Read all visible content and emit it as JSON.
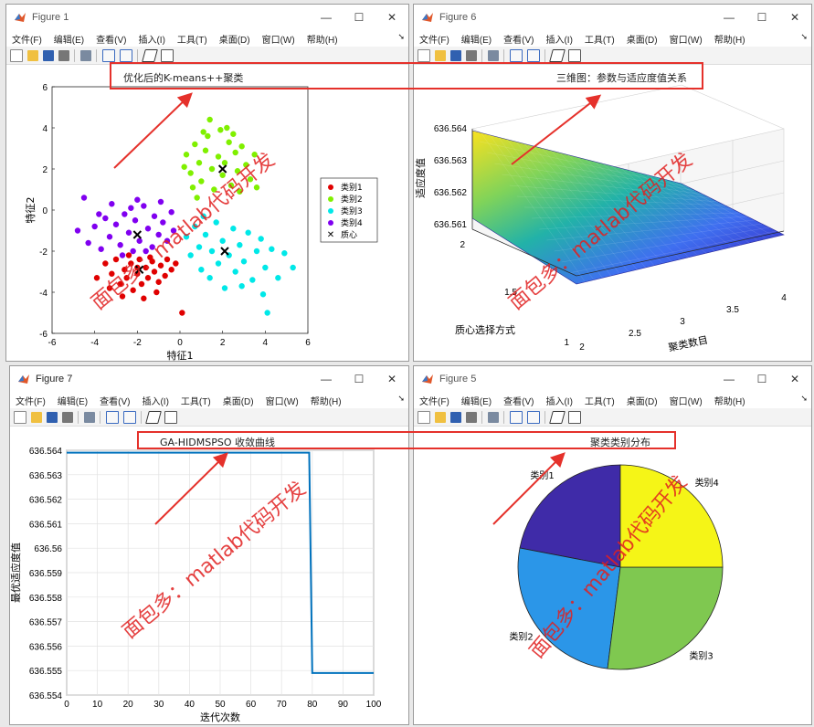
{
  "colors": {
    "cluster1": "#e00000",
    "cluster2": "#80f000",
    "cluster3": "#00e8e8",
    "cluster4": "#8000f0",
    "line": "#0072bd",
    "annotation": "#e5312b",
    "watermark": "#e02020"
  },
  "menu": [
    "文件(F)",
    "编辑(E)",
    "查看(V)",
    "插入(I)",
    "工具(T)",
    "桌面(D)",
    "窗口(W)",
    "帮助(H)"
  ],
  "window_controls": {
    "minimize": "—",
    "maximize": "☐",
    "close": "✕"
  },
  "watermark": "面包多：matlab代码开发",
  "figure1": {
    "title": "Figure 1",
    "chart_data": {
      "type": "scatter",
      "title": "优化后的K-means++聚类",
      "xlabel": "特征1",
      "ylabel": "特征2",
      "xlim": [
        -6,
        6
      ],
      "ylim": [
        -6,
        6
      ],
      "xticks": [
        "-6",
        "-4",
        "-2",
        "0",
        "2",
        "4",
        "6"
      ],
      "yticks": [
        "-6",
        "-4",
        "-2",
        "0",
        "2",
        "4",
        "6"
      ],
      "legend": [
        "类别1",
        "类别2",
        "类别3",
        "类别4",
        "质心"
      ],
      "legend_position": "right",
      "series": [
        {
          "name": "类别1",
          "points": [
            [
              -3.5,
              -2.6
            ],
            [
              -3.2,
              -3.1
            ],
            [
              -3,
              -2.4
            ],
            [
              -2.8,
              -3.6
            ],
            [
              -2.6,
              -2.9
            ],
            [
              -2.5,
              -3.3
            ],
            [
              -2.3,
              -2.6
            ],
            [
              -2.2,
              -3.9
            ],
            [
              -2,
              -3.1
            ],
            [
              -1.9,
              -2.4
            ],
            [
              -1.8,
              -3.6
            ],
            [
              -1.6,
              -2.8
            ],
            [
              -1.5,
              -3.3
            ],
            [
              -1.3,
              -2.5
            ],
            [
              -1.2,
              -3
            ],
            [
              -1,
              -3.5
            ],
            [
              -0.9,
              -2.7
            ],
            [
              -0.7,
              -3.2
            ],
            [
              -0.6,
              -2.4
            ],
            [
              -0.4,
              -2.9
            ],
            [
              -2.7,
              -4.2
            ],
            [
              -1.7,
              -4.3
            ],
            [
              -3.9,
              -3.3
            ],
            [
              -2.4,
              -2.2
            ],
            [
              -1.4,
              -2.3
            ],
            [
              -3.3,
              -3.8
            ],
            [
              -0.2,
              -2.6
            ],
            [
              0.1,
              -5
            ],
            [
              -2,
              -2.8
            ],
            [
              -1.1,
              -4
            ]
          ]
        },
        {
          "name": "类别2",
          "points": [
            [
              0.3,
              2.7
            ],
            [
              0.5,
              1.8
            ],
            [
              0.7,
              3.2
            ],
            [
              0.9,
              2.3
            ],
            [
              1,
              1.4
            ],
            [
              1.2,
              2.9
            ],
            [
              1.3,
              3.6
            ],
            [
              1.5,
              2
            ],
            [
              1.6,
              1
            ],
            [
              1.8,
              2.6
            ],
            [
              1.9,
              3.9
            ],
            [
              2,
              1.7
            ],
            [
              2.1,
              2.3
            ],
            [
              2.3,
              3.3
            ],
            [
              2.4,
              1.2
            ],
            [
              2.6,
              2.8
            ],
            [
              2.7,
              1.9
            ],
            [
              2.9,
              3.1
            ],
            [
              3.1,
              2.2
            ],
            [
              3.3,
              1.5
            ],
            [
              3.5,
              2.7
            ],
            [
              0.6,
              1.1
            ],
            [
              1.4,
              4.4
            ],
            [
              2.2,
              4
            ],
            [
              2.8,
              0.9
            ],
            [
              0.2,
              2.1
            ],
            [
              1.1,
              3.8
            ],
            [
              3.6,
              1.1
            ],
            [
              0.8,
              0.6
            ],
            [
              2.5,
              3.7
            ]
          ]
        },
        {
          "name": "类别3",
          "points": [
            [
              0.3,
              -1.3
            ],
            [
              0.5,
              -2.2
            ],
            [
              0.7,
              -0.8
            ],
            [
              0.9,
              -1.8
            ],
            [
              1,
              -2.9
            ],
            [
              1.2,
              -1.2
            ],
            [
              1.4,
              -3.3
            ],
            [
              1.5,
              -2
            ],
            [
              1.7,
              -0.6
            ],
            [
              1.8,
              -2.6
            ],
            [
              2,
              -1.5
            ],
            [
              2.1,
              -3.8
            ],
            [
              2.3,
              -2.2
            ],
            [
              2.5,
              -0.9
            ],
            [
              2.6,
              -3
            ],
            [
              2.8,
              -1.7
            ],
            [
              3,
              -2.5
            ],
            [
              3.2,
              -1.1
            ],
            [
              3.4,
              -3.4
            ],
            [
              3.6,
              -2
            ],
            [
              3.8,
              -1.4
            ],
            [
              4,
              -2.8
            ],
            [
              4.3,
              -1.9
            ],
            [
              4.6,
              -3.3
            ],
            [
              4.9,
              -2.1
            ],
            [
              5.3,
              -2.8
            ],
            [
              3.9,
              -4.1
            ],
            [
              4.1,
              -5
            ],
            [
              2.9,
              -3.7
            ],
            [
              1.1,
              -0.3
            ]
          ]
        },
        {
          "name": "类别4",
          "points": [
            [
              -4.3,
              -1.6
            ],
            [
              -4,
              -0.8
            ],
            [
              -3.7,
              -1.9
            ],
            [
              -3.5,
              -0.4
            ],
            [
              -3.3,
              -1.3
            ],
            [
              -3,
              -0.7
            ],
            [
              -2.8,
              -1.7
            ],
            [
              -2.6,
              -0.2
            ],
            [
              -2.4,
              -1.1
            ],
            [
              -2.2,
              -2
            ],
            [
              -2.1,
              -0.5
            ],
            [
              -1.9,
              -1.5
            ],
            [
              -1.7,
              0.2
            ],
            [
              -1.5,
              -0.9
            ],
            [
              -1.3,
              -1.8
            ],
            [
              -1.2,
              -0.3
            ],
            [
              -1,
              -1.2
            ],
            [
              -0.8,
              -0.6
            ],
            [
              -0.6,
              -1.5
            ],
            [
              -0.4,
              -0.1
            ],
            [
              -4.5,
              0.6
            ],
            [
              -4.8,
              -1
            ],
            [
              -3.2,
              0.3
            ],
            [
              -2,
              0.5
            ],
            [
              -0.9,
              0.4
            ],
            [
              -2.7,
              -2.2
            ],
            [
              -3.8,
              -0.2
            ],
            [
              -1.6,
              -2
            ],
            [
              -0.3,
              -1
            ],
            [
              -2.3,
              0.1
            ]
          ]
        }
      ],
      "centroids": [
        [
          -1.9,
          -2.9
        ],
        [
          2,
          2
        ],
        [
          2.1,
          -2
        ],
        [
          -2,
          -1.2
        ]
      ]
    }
  },
  "figure6": {
    "title": "Figure 6",
    "chart_data": {
      "type": "surface",
      "title": "三维图：参数与适应度值关系",
      "xlabel": "聚类数目",
      "ylabel": "质心选择方式",
      "zlabel": "适应度值",
      "xlim": [
        2,
        4
      ],
      "ylim": [
        1,
        2
      ],
      "zlim": [
        636.5605,
        636.5643
      ],
      "xticks": [
        "2",
        "2.5",
        "3",
        "3.5",
        "4"
      ],
      "yticks": [
        "1",
        "1.5",
        "2"
      ],
      "zticks": [
        "636.561",
        "636.562",
        "636.563",
        "636.564"
      ],
      "corner_values": {
        "x2_y1": 636.5607,
        "x2_y2": 636.5642,
        "x4_y1": 636.5607,
        "x4_y2": 636.5614
      }
    }
  },
  "figure7": {
    "title": "Figure 7",
    "chart_data": {
      "type": "line",
      "title": "GA-HIDMSPSO 收敛曲线",
      "xlabel": "迭代次数",
      "ylabel": "最优适应度值",
      "xlim": [
        0,
        100
      ],
      "ylim": [
        636.554,
        636.564
      ],
      "xticks": [
        "0",
        "10",
        "20",
        "30",
        "40",
        "50",
        "60",
        "70",
        "80",
        "90",
        "100"
      ],
      "yticks": [
        "636.554",
        "636.555",
        "636.556",
        "636.557",
        "636.558",
        "636.559",
        "636.56",
        "636.561",
        "636.562",
        "636.563",
        "636.564"
      ],
      "grid": true,
      "x": [
        0,
        79,
        80,
        100
      ],
      "y": [
        636.5639,
        636.5639,
        636.5549,
        636.5549
      ]
    }
  },
  "figure5": {
    "title": "Figure 5",
    "chart_data": {
      "type": "pie",
      "title": "聚类类别分布",
      "labels": [
        "类别1",
        "类别2",
        "类别3",
        "类别4"
      ],
      "values": [
        22,
        26,
        27,
        25
      ],
      "colors": [
        "#3f2ba8",
        "#2b96e8",
        "#7fc850",
        "#f5f517"
      ]
    }
  }
}
